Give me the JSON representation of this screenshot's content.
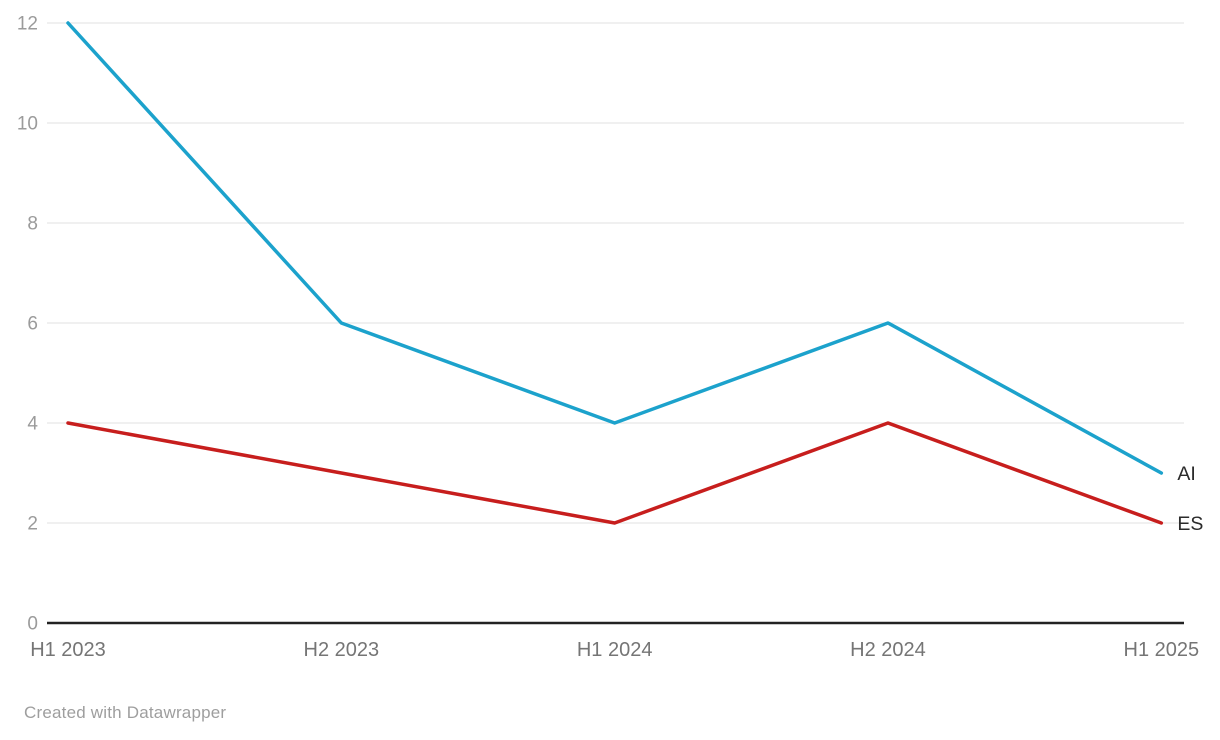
{
  "chart_data": {
    "type": "line",
    "categories": [
      "H1 2023",
      "H2 2023",
      "H1 2024",
      "H2 2024",
      "H1 2025"
    ],
    "series": [
      {
        "name": "AI",
        "color": "#1ca2cc",
        "values": [
          12,
          6,
          4,
          6,
          3
        ]
      },
      {
        "name": "ES",
        "color": "#c71e1d",
        "values": [
          4,
          3,
          2,
          4,
          2
        ]
      }
    ],
    "title": "",
    "xlabel": "",
    "ylabel": "",
    "ylim": [
      0,
      12
    ],
    "yticks": [
      0,
      2,
      4,
      6,
      8,
      10,
      12
    ],
    "grid": "horizontal-only",
    "legend_position": "line-end-labels"
  },
  "footer": {
    "credit": "Created with Datawrapper"
  },
  "colors": {
    "background": "#ffffff",
    "gridline": "#e8e8e8",
    "axis_line": "#222222",
    "y_tick_label": "#9b9b9b",
    "x_tick_label": "#757575",
    "line_end_label": "#2b2b2b",
    "footer_text": "#9e9e9e"
  }
}
